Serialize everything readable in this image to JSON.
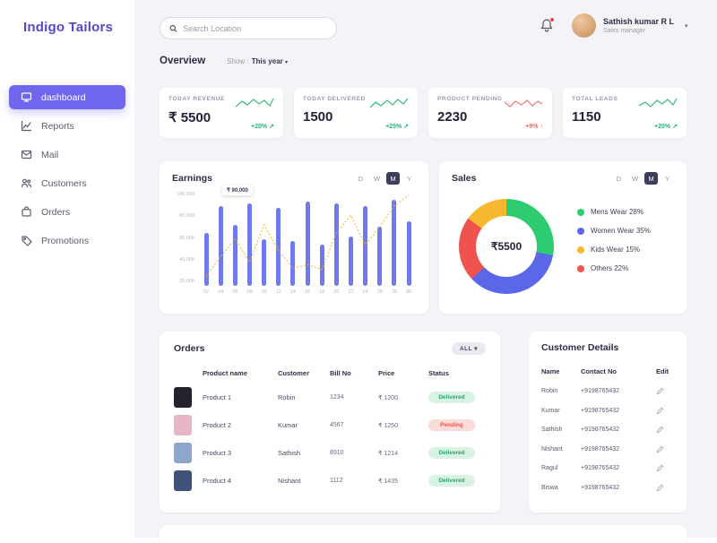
{
  "app": {
    "title": "Indigo Tailors"
  },
  "sidebar": {
    "items": [
      {
        "label": "dashboard",
        "active": true
      },
      {
        "label": "Reports",
        "active": false
      },
      {
        "label": "Mail",
        "active": false
      },
      {
        "label": "Customers",
        "active": false
      },
      {
        "label": "Orders",
        "active": false
      },
      {
        "label": "Promotions",
        "active": false
      }
    ]
  },
  "topbar": {
    "search_placeholder": "Search Location",
    "user_name": "Sathish kumar R L",
    "user_role": "Sales manager"
  },
  "overview": {
    "title": "Overview",
    "show_label": "Show :",
    "show_value": "This year"
  },
  "stats": [
    {
      "label": "TODAY REVENUE",
      "value": "₹ 5500",
      "change": "+20%",
      "arrow": "↗",
      "color": "#22b573"
    },
    {
      "label": "TODAY DELIVERED",
      "value": "1500",
      "change": "+25%",
      "arrow": "↗",
      "color": "#22b573"
    },
    {
      "label": "PRODUCT PENDING",
      "value": "2230",
      "change": "+9%",
      "arrow": "↑",
      "color": "#ee6a6a"
    },
    {
      "label": "TOTAL LEADS",
      "value": "1150",
      "change": "+20%",
      "arrow": "↗",
      "color": "#22b573"
    }
  ],
  "earnings": {
    "title": "Earnings",
    "ranges": [
      "D",
      "W",
      "M",
      "Y"
    ],
    "active_range": "M",
    "tooltip": "₹ 90,000"
  },
  "sales": {
    "title": "Sales",
    "ranges": [
      "D",
      "W",
      "M",
      "Y"
    ],
    "active_range": "M",
    "center_value": "₹5500",
    "legend": [
      {
        "label": "Mens Wear 28%"
      },
      {
        "label": "Women Wear 35%"
      },
      {
        "label": "Kids Wear 15%"
      },
      {
        "label": "Others 22%"
      }
    ]
  },
  "orders": {
    "title": "Orders",
    "filter_label": "ALL",
    "columns": [
      "Product name",
      "Customer",
      "Bill No",
      "Price",
      "Status"
    ],
    "rows": [
      {
        "product": "Product 1",
        "customer": "Robin",
        "bill": "1234",
        "price": "₹ 1200",
        "status": "Delivered",
        "status_type": "delivered",
        "thumb_color": "#23232f"
      },
      {
        "product": "Product 2",
        "customer": "Kumar",
        "bill": "4567",
        "price": "₹ 1250",
        "status": "Pending",
        "status_type": "pending",
        "thumb_color": "#e7b6c6"
      },
      {
        "product": "Product 3",
        "customer": "Sathish",
        "bill": "8910",
        "price": "₹ 1214",
        "status": "Delivered",
        "status_type": "delivered",
        "thumb_color": "#8fa6cc"
      },
      {
        "product": "Product 4",
        "customer": "Nishant",
        "bill": "1112",
        "price": "₹ 1435",
        "status": "Delivered",
        "status_type": "delivered",
        "thumb_color": "#41517a"
      }
    ]
  },
  "customer_details": {
    "title": "Customer Details",
    "columns": [
      "Name",
      "Contact No",
      "Edit"
    ],
    "rows": [
      {
        "name": "Robin",
        "contact": "+9198765432"
      },
      {
        "name": "Kumar",
        "contact": "+9198765432"
      },
      {
        "name": "Sathish",
        "contact": "+9198765432"
      },
      {
        "name": "Nishant",
        "contact": "+9198765432"
      },
      {
        "name": "Ragul",
        "contact": "+9198765432"
      },
      {
        "name": "Biswa",
        "contact": "+9198765432"
      }
    ]
  },
  "chart_data": [
    {
      "type": "bar",
      "title": "Earnings",
      "categories": [
        "02",
        "04",
        "06",
        "08",
        "10",
        "12",
        "14",
        "16",
        "18",
        "20",
        "22",
        "24",
        "26",
        "28",
        "30"
      ],
      "values": [
        65000,
        88000,
        72000,
        90000,
        60000,
        86000,
        58000,
        92000,
        55000,
        90000,
        62000,
        88000,
        70000,
        93000,
        75000
      ],
      "line_overlay": [
        28000,
        45000,
        60000,
        40000,
        72000,
        50000,
        35000,
        38000,
        34000,
        65000,
        80000,
        55000,
        70000,
        88000,
        97000
      ],
      "ylim": [
        20000,
        100000
      ],
      "yticks": [
        "100,000",
        "80,000",
        "60,000",
        "40,000",
        "20,000"
      ],
      "bar_color": "#6e79ea",
      "line_color": "#f0b429",
      "annotation": "₹ 90,000",
      "xlabel": "",
      "ylabel": ""
    },
    {
      "type": "pie",
      "title": "Sales",
      "labels": [
        "Mens Wear",
        "Women Wear",
        "Kids Wear",
        "Others"
      ],
      "values": [
        28,
        35,
        15,
        22
      ],
      "colors": [
        "#2ecc71",
        "#5b67e8",
        "#f5b82e",
        "#ef5350"
      ],
      "draw_order": [
        "Mens Wear",
        "Women Wear",
        "Others",
        "Kids Wear"
      ],
      "center_label": "₹5500",
      "legend_position": "right"
    }
  ]
}
